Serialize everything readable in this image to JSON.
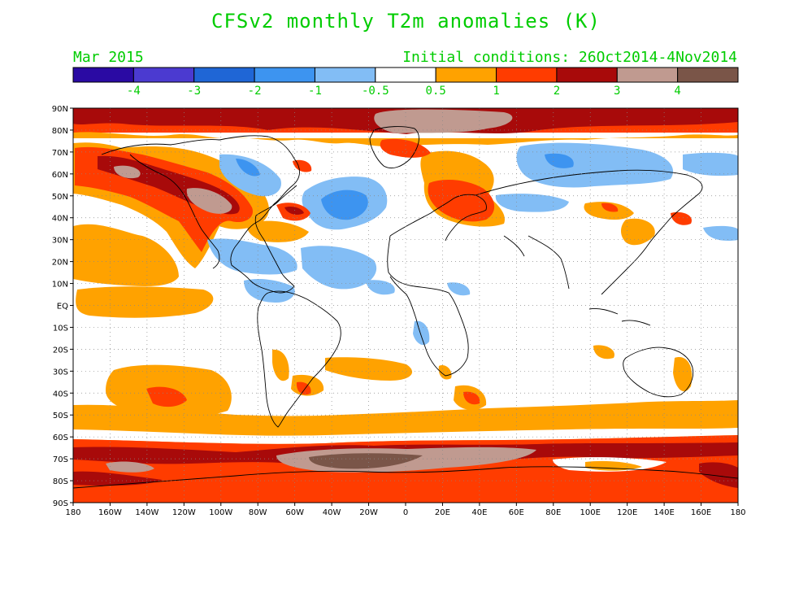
{
  "title": "CFSv2 monthly T2m anomalies (K)",
  "subtitle_left": "Mar 2015",
  "subtitle_right": "Initial conditions: 26Oct2014-4Nov2014",
  "colorbar": {
    "labels": [
      "-4",
      "-3",
      "-2",
      "-1",
      "-0.5",
      "0.5",
      "1",
      "2",
      "3",
      "4"
    ],
    "bins": [
      {
        "label": "< -4",
        "color": "#2a0aa3"
      },
      {
        "label": "-4 to -3",
        "color": "#4b3ad0"
      },
      {
        "label": "-3 to -2",
        "color": "#1f66d6"
      },
      {
        "label": "-2 to -1",
        "color": "#3d94f0"
      },
      {
        "label": "-1 to -0.5",
        "color": "#82bdf5"
      },
      {
        "label": "-0.5 to 0.5",
        "color": "#ffffff"
      },
      {
        "label": "0.5 to 1",
        "color": "#ffa200"
      },
      {
        "label": "1 to 2",
        "color": "#ff3c00"
      },
      {
        "label": "2 to 3",
        "color": "#a80a0a"
      },
      {
        "label": "3 to 4",
        "color": "#c09a90"
      },
      {
        "label": "> 4",
        "color": "#7a5548"
      }
    ]
  },
  "map": {
    "lat_labels": [
      "90N",
      "80N",
      "70N",
      "60N",
      "50N",
      "40N",
      "30N",
      "20N",
      "10N",
      "EQ",
      "10S",
      "20S",
      "30S",
      "40S",
      "50S",
      "60S",
      "70S",
      "80S",
      "90S"
    ],
    "lon_labels": [
      "180",
      "160W",
      "140W",
      "120W",
      "100W",
      "80W",
      "60W",
      "40W",
      "20W",
      "0",
      "20E",
      "40E",
      "60E",
      "80E",
      "100E",
      "120E",
      "140E",
      "160E",
      "180"
    ],
    "grid": "dotted",
    "label_color": "#000000",
    "text_color": "#00cc00"
  }
}
